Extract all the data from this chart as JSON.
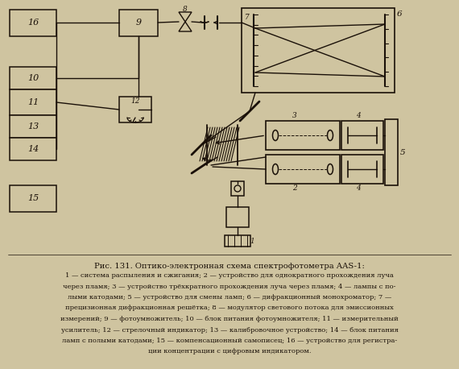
{
  "bg_color": "#cfc4a0",
  "line_color": "#1a1008",
  "figsize": [
    5.7,
    4.58
  ],
  "dpi": 100,
  "title": "Рис. 131. Оптико-электронная схема спектрофотометра AAS-1:",
  "caption_lines": [
    "1 — система распыления и сжигания; 2 — устройство для однократного прохождения луча",
    "через пламя; 3 — устройство трёхкратного прохождения луча через пламя; 4 — лампы с по-",
    "лыми катодами; 5 — устройство для смены ламп; 6 — дифракционный монохроматор; 7 —",
    "прецизионная дифракционная решётка; 8 — модулятор светового потока для эмиссионных",
    "измерений; 9 — фотоумножитель; 10 — блок питания фотоумножителя; 11 — измерительный",
    "усилитель; 12 — стрелочный индикатор; 13 — калибровочное устройство; 14 — блок питания",
    "ламп с полыми катодами; 15 — компенсационный самописец; 16 — устройство для регистра-",
    "ции концентрации с цифровым индикатором."
  ]
}
